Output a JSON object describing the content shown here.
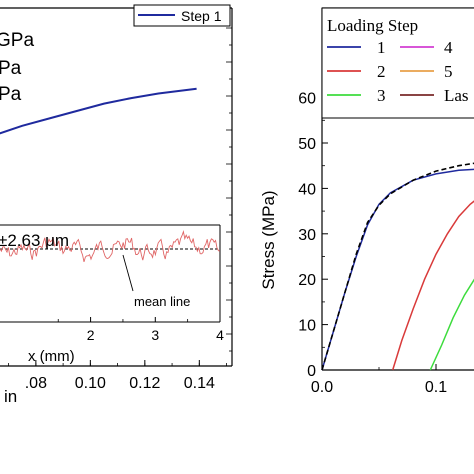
{
  "chart_data": [
    {
      "type": "line",
      "title": "",
      "xlabel": "in",
      "ylabel": "",
      "xlim": [
        0.065,
        0.152
      ],
      "x_tick_labels": [
        ".08",
        "0.10",
        "0.12",
        "0.14"
      ],
      "x_ticks": [
        0.08,
        0.1,
        0.12,
        0.14
      ],
      "grid": false,
      "legend": {
        "position": "top-right",
        "entries": [
          "Step 1"
        ]
      },
      "left_text_fragments": [
        "GPa",
        "Pa",
        "Pa"
      ],
      "series": [
        {
          "name": "Step 1",
          "color": "#1f2a9e",
          "x": [
            0.065,
            0.075,
            0.085,
            0.095,
            0.105,
            0.115,
            0.125,
            0.139
          ],
          "y": [
            0.0,
            0.1,
            0.18,
            0.26,
            0.34,
            0.4,
            0.45,
            0.5
          ]
        }
      ],
      "inset": {
        "type": "line",
        "xlabel": "x (mm)",
        "xlim": [
          0,
          4
        ],
        "x_tick_labels": [
          "2",
          "3",
          "4"
        ],
        "x_ticks": [
          2,
          3,
          4
        ],
        "annotation_value": "±2.63 μm",
        "reference_label": "mean line",
        "series": [
          {
            "name": "roughness profile",
            "color": "#e06666"
          }
        ]
      }
    },
    {
      "type": "line",
      "title": "",
      "xlabel": "",
      "ylabel": "Stress (MPa)",
      "xlim": [
        0.0,
        0.152
      ],
      "ylim": [
        0,
        50
      ],
      "y_ticks": [
        0,
        10,
        20,
        30,
        40,
        50,
        60
      ],
      "x_ticks": [
        0.0,
        0.1
      ],
      "x_tick_labels": [
        "0.0",
        "0.1"
      ],
      "grid": false,
      "legend": {
        "title": "Loading Step",
        "position": "top-left",
        "entries": [
          {
            "label": "1",
            "color": "#1f2a9e"
          },
          {
            "label": "2",
            "color": "#d93a3a"
          },
          {
            "label": "3",
            "color": "#3ddc3d"
          },
          {
            "label": "4",
            "color": "#d23ed2"
          },
          {
            "label": "5",
            "color": "#e8a04a"
          },
          {
            "label": "Las",
            "color": "#7a2a2a"
          }
        ]
      },
      "series": [
        {
          "name": "1",
          "color": "#1f2a9e",
          "x": [
            0.0,
            0.01,
            0.02,
            0.03,
            0.04,
            0.05,
            0.06,
            0.08,
            0.1,
            0.12,
            0.14,
            0.152
          ],
          "y": [
            0.0,
            8.5,
            17,
            25,
            32,
            36.5,
            39,
            41.8,
            43.2,
            44.0,
            44.3,
            44.4
          ]
        },
        {
          "name": "dashed reference",
          "color": "#000000",
          "dashed": true,
          "x": [
            0.0,
            0.01,
            0.02,
            0.03,
            0.04,
            0.05,
            0.06,
            0.08,
            0.1,
            0.12,
            0.14,
            0.152
          ],
          "y": [
            0.0,
            8.5,
            17,
            25.5,
            32.5,
            36.3,
            38.8,
            41.8,
            43.8,
            45.0,
            45.8,
            46.2
          ]
        },
        {
          "name": "2",
          "color": "#d93a3a",
          "x": [
            0.062,
            0.07,
            0.08,
            0.09,
            0.1,
            0.11,
            0.12,
            0.13,
            0.14,
            0.152
          ],
          "y": [
            0.0,
            6.5,
            13.5,
            20,
            25.5,
            30,
            33.8,
            36.5,
            38.5,
            40.0
          ]
        },
        {
          "name": "3",
          "color": "#3ddc3d",
          "x": [
            0.095,
            0.105,
            0.115,
            0.125,
            0.135,
            0.14,
            0.146
          ],
          "y": [
            0.0,
            5.5,
            11.5,
            16.5,
            20.5,
            22.5,
            24.5
          ]
        },
        {
          "name": "4",
          "color": "#d23ed2",
          "x": [
            0.141,
            0.143,
            0.145,
            0.147
          ],
          "y": [
            0.0,
            0.5,
            1.0,
            1.4
          ]
        }
      ]
    }
  ]
}
